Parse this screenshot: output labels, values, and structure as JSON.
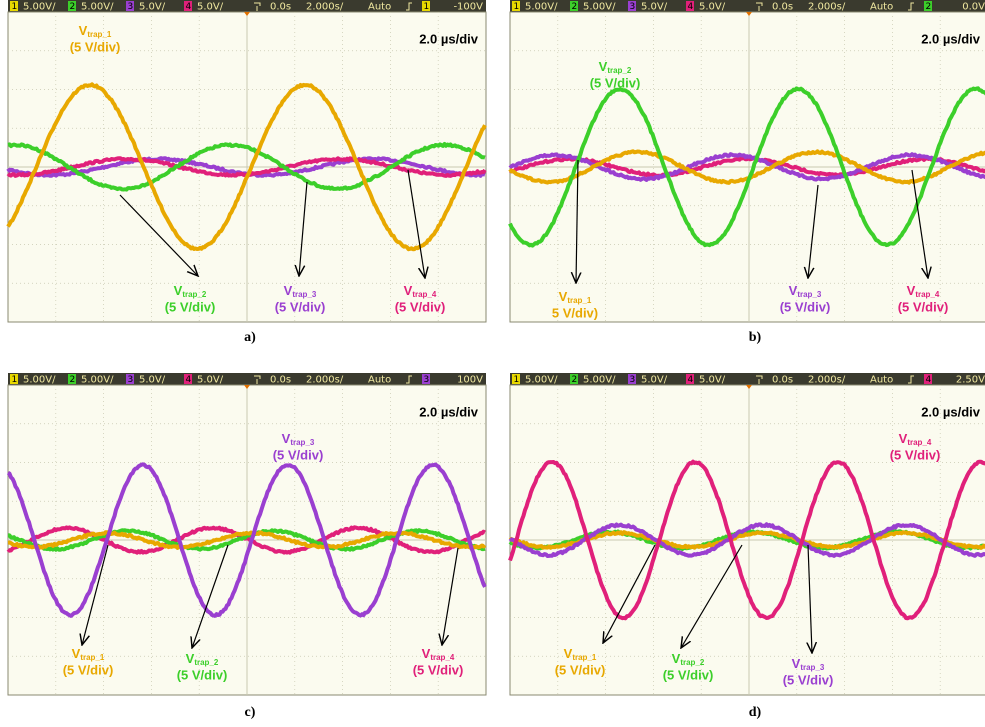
{
  "panels": [
    {
      "header": {
        "channels": [
          {
            "num": "1",
            "scale": "5.00V/"
          },
          {
            "num": "2",
            "scale": "5.00V/"
          },
          {
            "num": "3",
            "scale": "5.0V/"
          },
          {
            "num": "4",
            "scale": "5.0V/"
          }
        ],
        "delay": "0.0s",
        "timebase": "2.000s/",
        "mode": "Auto",
        "trig_ch": "1",
        "trig_level": "-100V"
      },
      "timebase_label": "2.0 µs/div",
      "labels": [
        {
          "name": "V",
          "sub": "trap_1",
          "scale": "(5 V/div)"
        },
        {
          "name": "V",
          "sub": "trap_2",
          "scale": "(5 V/div)"
        },
        {
          "name": "V",
          "sub": "trap_3",
          "scale": "(5 V/div)"
        },
        {
          "name": "V",
          "sub": "trap_4",
          "scale": "(5 V/div)"
        }
      ],
      "caption": "a)"
    },
    {
      "header": {
        "channels": [
          {
            "num": "1",
            "scale": "5.00V/"
          },
          {
            "num": "2",
            "scale": "5.00V/"
          },
          {
            "num": "3",
            "scale": "5.0V/"
          },
          {
            "num": "4",
            "scale": "5.0V/"
          }
        ],
        "delay": "0.0s",
        "timebase": "2.000s/",
        "mode": "Auto",
        "trig_ch": "2",
        "trig_level": "0.0V"
      },
      "timebase_label": "2.0 µs/div",
      "labels": [
        {
          "name": "V",
          "sub": "trap_1",
          "scale": "5 V/div)"
        },
        {
          "name": "V",
          "sub": "trap_2",
          "scale": "(5 V/div)"
        },
        {
          "name": "V",
          "sub": "trap_3",
          "scale": "(5 V/div)"
        },
        {
          "name": "V",
          "sub": "trap_4",
          "scale": "(5 V/div)"
        }
      ],
      "caption": "b)"
    },
    {
      "header": {
        "channels": [
          {
            "num": "1",
            "scale": "5.00V/"
          },
          {
            "num": "2",
            "scale": "5.00V/"
          },
          {
            "num": "3",
            "scale": "5.0V/"
          },
          {
            "num": "4",
            "scale": "5.0V/"
          }
        ],
        "delay": "0.0s",
        "timebase": "2.000s/",
        "mode": "Auto",
        "trig_ch": "3",
        "trig_level": "100V"
      },
      "timebase_label": "2.0 µs/div",
      "labels": [
        {
          "name": "V",
          "sub": "trap_1",
          "scale": "(5 V/div)"
        },
        {
          "name": "V",
          "sub": "trap_2",
          "scale": "(5 V/div)"
        },
        {
          "name": "V",
          "sub": "trap_3",
          "scale": "(5 V/div)"
        },
        {
          "name": "V",
          "sub": "trap_4",
          "scale": "(5 V/div)"
        }
      ],
      "caption": "c)"
    },
    {
      "header": {
        "channels": [
          {
            "num": "1",
            "scale": "5.00V/"
          },
          {
            "num": "2",
            "scale": "5.00V/"
          },
          {
            "num": "3",
            "scale": "5.0V/"
          },
          {
            "num": "4",
            "scale": "5.0V/"
          }
        ],
        "delay": "0.0s",
        "timebase": "2.000s/",
        "mode": "Auto",
        "trig_ch": "4",
        "trig_level": "2.50V"
      },
      "timebase_label": "2.0 µs/div",
      "labels": [
        {
          "name": "V",
          "sub": "trap_1",
          "scale": "(5 V/div)"
        },
        {
          "name": "V",
          "sub": "trap_2",
          "scale": "(5 V/div)"
        },
        {
          "name": "V",
          "sub": "trap_3",
          "scale": "(5 V/div)"
        },
        {
          "name": "V",
          "sub": "trap_4",
          "scale": "(5 V/div)"
        }
      ],
      "caption": "d)"
    }
  ]
}
